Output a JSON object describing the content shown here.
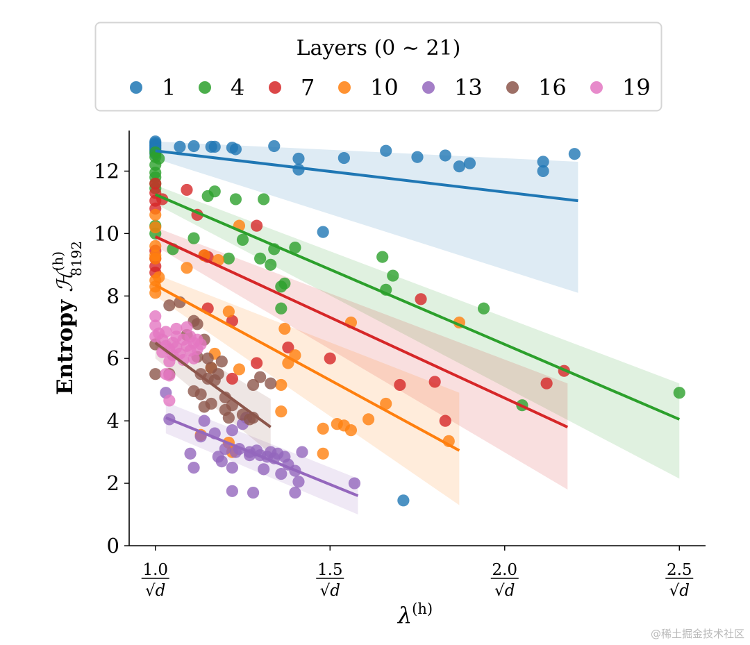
{
  "chart_data": {
    "type": "scatter",
    "xlabel": "λ(h)",
    "ylabel": "Entropy ℋ(h)8192",
    "ylabel_parts": {
      "text": "Entropy ",
      "symbol": "ℋ",
      "superscript": "(h)",
      "subscript": "8192"
    },
    "xlabel_parts": {
      "symbol": "λ",
      "superscript": "(h)"
    },
    "xlim": [
      0.925,
      2.575
    ],
    "ylim": [
      0,
      13.3
    ],
    "x_ticks": [
      {
        "value": 1.0,
        "numerator": "1.0",
        "denominator": "√d"
      },
      {
        "value": 1.5,
        "numerator": "1.5",
        "denominator": "√d"
      },
      {
        "value": 2.0,
        "numerator": "2.0",
        "denominator": "√d"
      },
      {
        "value": 2.5,
        "numerator": "2.5",
        "denominator": "√d"
      }
    ],
    "y_ticks": [
      0,
      2,
      4,
      6,
      8,
      10,
      12
    ],
    "grid": false,
    "legend": {
      "title": "Layers (0 ∼ 21)",
      "placement": "top-center"
    },
    "series": [
      {
        "name": "1",
        "color": "#1f77b4",
        "fit": {
          "x": [
            1.0,
            2.21
          ],
          "y": [
            12.65,
            11.05
          ]
        },
        "band": {
          "x": [
            1.0,
            2.21
          ],
          "upper": [
            12.95,
            12.3
          ],
          "lower": [
            12.4,
            8.1
          ]
        },
        "points": [
          [
            1.0,
            12.95
          ],
          [
            1.0,
            12.85
          ],
          [
            1.0,
            12.75
          ],
          [
            1.0,
            12.65
          ],
          [
            1.0,
            12.55
          ],
          [
            1.0,
            12.9
          ],
          [
            1.0,
            12.8
          ],
          [
            1.0,
            12.7
          ],
          [
            1.07,
            12.78
          ],
          [
            1.11,
            12.8
          ],
          [
            1.16,
            12.78
          ],
          [
            1.17,
            12.78
          ],
          [
            1.22,
            12.75
          ],
          [
            1.23,
            12.7
          ],
          [
            1.34,
            12.8
          ],
          [
            1.41,
            12.4
          ],
          [
            1.41,
            12.05
          ],
          [
            1.54,
            12.42
          ],
          [
            1.66,
            12.65
          ],
          [
            1.75,
            12.45
          ],
          [
            1.83,
            12.5
          ],
          [
            1.87,
            12.15
          ],
          [
            1.9,
            12.25
          ],
          [
            2.11,
            12.3
          ],
          [
            2.11,
            12.0
          ],
          [
            2.2,
            12.55
          ],
          [
            1.48,
            10.05
          ],
          [
            1.71,
            1.45
          ]
        ]
      },
      {
        "name": "4",
        "color": "#2ca02c",
        "fit": {
          "x": [
            1.0,
            2.5
          ],
          "y": [
            11.25,
            4.05
          ]
        },
        "band": {
          "x": [
            1.0,
            2.5
          ],
          "upper": [
            11.55,
            5.2
          ],
          "lower": [
            10.95,
            2.15
          ]
        },
        "points": [
          [
            1.0,
            12.6
          ],
          [
            1.0,
            12.45
          ],
          [
            1.0,
            12.2
          ],
          [
            1.0,
            11.95
          ],
          [
            1.0,
            11.8
          ],
          [
            1.0,
            11.6
          ],
          [
            1.0,
            11.45
          ],
          [
            1.0,
            10.25
          ],
          [
            1.01,
            12.4
          ],
          [
            1.0,
            10.0
          ],
          [
            1.05,
            9.5
          ],
          [
            1.11,
            9.85
          ],
          [
            1.15,
            11.2
          ],
          [
            1.17,
            11.35
          ],
          [
            1.23,
            11.1
          ],
          [
            1.21,
            9.2
          ],
          [
            1.25,
            9.8
          ],
          [
            1.3,
            9.2
          ],
          [
            1.31,
            11.1
          ],
          [
            1.33,
            9.0
          ],
          [
            1.34,
            9.5
          ],
          [
            1.36,
            8.3
          ],
          [
            1.37,
            8.4
          ],
          [
            1.36,
            7.6
          ],
          [
            1.4,
            9.55
          ],
          [
            1.65,
            9.25
          ],
          [
            1.68,
            8.65
          ],
          [
            1.66,
            8.2
          ],
          [
            1.94,
            7.6
          ],
          [
            2.05,
            4.5
          ],
          [
            2.5,
            4.9
          ]
        ]
      },
      {
        "name": "7",
        "color": "#d62728",
        "fit": {
          "x": [
            1.0,
            2.18
          ],
          "y": [
            9.9,
            3.8
          ]
        },
        "band": {
          "x": [
            1.0,
            2.18
          ],
          "upper": [
            10.2,
            5.2
          ],
          "lower": [
            9.6,
            1.8
          ]
        },
        "points": [
          [
            1.0,
            11.6
          ],
          [
            1.0,
            11.3
          ],
          [
            1.0,
            11.05
          ],
          [
            1.0,
            10.8
          ],
          [
            1.0,
            9.45
          ],
          [
            1.0,
            9.2
          ],
          [
            1.0,
            8.95
          ],
          [
            1.0,
            8.75
          ],
          [
            1.02,
            11.1
          ],
          [
            1.09,
            11.4
          ],
          [
            1.12,
            10.6
          ],
          [
            1.14,
            9.3
          ],
          [
            1.15,
            9.25
          ],
          [
            1.29,
            10.25
          ],
          [
            1.15,
            7.6
          ],
          [
            1.22,
            7.2
          ],
          [
            1.22,
            5.35
          ],
          [
            1.29,
            5.85
          ],
          [
            1.38,
            6.35
          ],
          [
            1.5,
            6.0
          ],
          [
            1.7,
            5.15
          ],
          [
            1.76,
            7.9
          ],
          [
            1.8,
            5.25
          ],
          [
            1.83,
            4.0
          ],
          [
            2.12,
            5.2
          ],
          [
            2.17,
            5.6
          ]
        ]
      },
      {
        "name": "10",
        "color": "#ff7f0e",
        "fit": {
          "x": [
            1.0,
            1.87
          ],
          "y": [
            8.35,
            3.05
          ]
        },
        "band": {
          "x": [
            1.0,
            1.87
          ],
          "upper": [
            8.7,
            4.9
          ],
          "lower": [
            8.0,
            1.3
          ]
        },
        "points": [
          [
            1.0,
            10.6
          ],
          [
            1.0,
            10.2
          ],
          [
            1.0,
            9.6
          ],
          [
            1.0,
            9.3
          ],
          [
            1.0,
            9.2
          ],
          [
            1.0,
            8.5
          ],
          [
            1.0,
            8.3
          ],
          [
            1.0,
            8.1
          ],
          [
            1.01,
            8.6
          ],
          [
            1.09,
            8.9
          ],
          [
            1.14,
            9.3
          ],
          [
            1.18,
            9.15
          ],
          [
            1.24,
            10.25
          ],
          [
            1.21,
            7.5
          ],
          [
            1.17,
            6.15
          ],
          [
            1.16,
            5.7
          ],
          [
            1.24,
            5.65
          ],
          [
            1.36,
            5.15
          ],
          [
            1.37,
            6.95
          ],
          [
            1.38,
            5.85
          ],
          [
            1.4,
            6.1
          ],
          [
            1.36,
            4.3
          ],
          [
            1.48,
            2.95
          ],
          [
            1.48,
            3.75
          ],
          [
            1.52,
            3.9
          ],
          [
            1.54,
            3.85
          ],
          [
            1.56,
            3.7
          ],
          [
            1.56,
            7.15
          ],
          [
            1.61,
            4.05
          ],
          [
            1.66,
            4.55
          ],
          [
            1.84,
            3.35
          ],
          [
            1.87,
            7.15
          ],
          [
            1.21,
            3.3
          ],
          [
            1.22,
            3.0
          ],
          [
            1.13,
            3.55
          ]
        ]
      },
      {
        "name": "13",
        "color": "#9467bd",
        "fit": {
          "x": [
            1.03,
            1.58
          ],
          "y": [
            4.1,
            1.6
          ]
        },
        "band": {
          "x": [
            1.03,
            1.58
          ],
          "upper": [
            4.6,
            2.15
          ],
          "lower": [
            3.6,
            1.0
          ]
        },
        "points": [
          [
            1.03,
            4.9
          ],
          [
            1.04,
            4.05
          ],
          [
            1.1,
            2.95
          ],
          [
            1.11,
            2.5
          ],
          [
            1.13,
            3.5
          ],
          [
            1.14,
            4.0
          ],
          [
            1.17,
            3.6
          ],
          [
            1.18,
            2.85
          ],
          [
            1.19,
            2.7
          ],
          [
            1.2,
            3.1
          ],
          [
            1.22,
            2.5
          ],
          [
            1.22,
            3.7
          ],
          [
            1.23,
            3.0
          ],
          [
            1.24,
            3.1
          ],
          [
            1.25,
            3.9
          ],
          [
            1.26,
            4.1
          ],
          [
            1.27,
            3.0
          ],
          [
            1.27,
            2.9
          ],
          [
            1.29,
            3.05
          ],
          [
            1.3,
            2.9
          ],
          [
            1.31,
            2.45
          ],
          [
            1.32,
            2.85
          ],
          [
            1.33,
            3.0
          ],
          [
            1.34,
            2.8
          ],
          [
            1.35,
            2.95
          ],
          [
            1.36,
            2.3
          ],
          [
            1.37,
            2.85
          ],
          [
            1.38,
            2.6
          ],
          [
            1.4,
            2.4
          ],
          [
            1.41,
            2.05
          ],
          [
            1.4,
            1.7
          ],
          [
            1.42,
            3.0
          ],
          [
            1.22,
            1.75
          ],
          [
            1.28,
            1.7
          ],
          [
            1.57,
            2.0
          ]
        ]
      },
      {
        "name": "16",
        "color": "#8c564b",
        "fit": {
          "x": [
            1.0,
            1.33
          ],
          "y": [
            6.5,
            3.8
          ]
        },
        "band": {
          "x": [
            1.0,
            1.33
          ],
          "upper": [
            6.95,
            4.7
          ],
          "lower": [
            6.0,
            2.95
          ]
        },
        "points": [
          [
            1.0,
            6.45
          ],
          [
            1.0,
            5.5
          ],
          [
            1.04,
            5.5
          ],
          [
            1.04,
            7.7
          ],
          [
            1.07,
            7.8
          ],
          [
            1.09,
            6.75
          ],
          [
            1.11,
            7.2
          ],
          [
            1.12,
            7.1
          ],
          [
            1.11,
            4.95
          ],
          [
            1.12,
            6.05
          ],
          [
            1.13,
            5.5
          ],
          [
            1.13,
            4.85
          ],
          [
            1.14,
            6.6
          ],
          [
            1.14,
            4.45
          ],
          [
            1.15,
            5.35
          ],
          [
            1.15,
            6.0
          ],
          [
            1.16,
            5.7
          ],
          [
            1.16,
            4.55
          ],
          [
            1.17,
            5.3
          ],
          [
            1.18,
            5.5
          ],
          [
            1.19,
            5.9
          ],
          [
            1.2,
            4.75
          ],
          [
            1.2,
            4.35
          ],
          [
            1.21,
            4.1
          ],
          [
            1.22,
            4.5
          ],
          [
            1.25,
            4.2
          ],
          [
            1.27,
            4.05
          ],
          [
            1.28,
            5.15
          ],
          [
            1.3,
            5.4
          ],
          [
            1.33,
            5.2
          ],
          [
            1.28,
            4.1
          ]
        ]
      },
      {
        "name": "19",
        "color": "#e377c2",
        "fit": null,
        "band": null,
        "points": [
          [
            1.0,
            7.35
          ],
          [
            1.0,
            7.05
          ],
          [
            1.0,
            6.7
          ],
          [
            1.01,
            6.8
          ],
          [
            1.02,
            6.6
          ],
          [
            1.02,
            6.2
          ],
          [
            1.03,
            6.4
          ],
          [
            1.03,
            6.85
          ],
          [
            1.04,
            6.3
          ],
          [
            1.04,
            5.9
          ],
          [
            1.05,
            6.5
          ],
          [
            1.05,
            6.1
          ],
          [
            1.06,
            6.7
          ],
          [
            1.06,
            6.35
          ],
          [
            1.07,
            6.15
          ],
          [
            1.08,
            6.6
          ],
          [
            1.08,
            5.95
          ],
          [
            1.09,
            6.4
          ],
          [
            1.1,
            6.7
          ],
          [
            1.1,
            6.25
          ],
          [
            1.11,
            6.5
          ],
          [
            1.11,
            6.0
          ],
          [
            1.12,
            6.6
          ],
          [
            1.12,
            6.3
          ],
          [
            1.13,
            6.45
          ],
          [
            1.03,
            5.5
          ],
          [
            1.04,
            5.45
          ],
          [
            1.04,
            4.65
          ],
          [
            1.06,
            6.95
          ],
          [
            1.09,
            7.0
          ]
        ]
      }
    ]
  },
  "watermark": "@稀土掘金技术社区"
}
